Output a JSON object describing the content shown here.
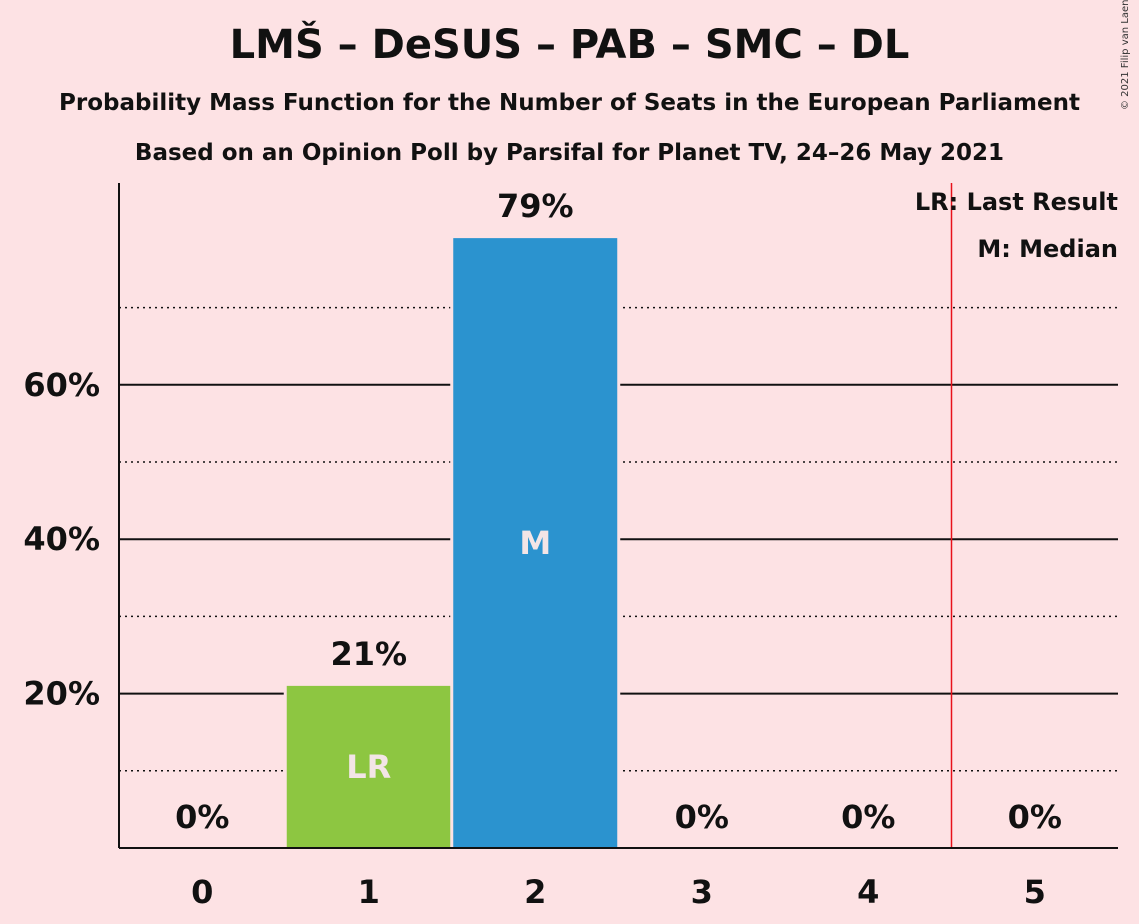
{
  "chart_data": {
    "type": "bar",
    "title": "LMŠ – DeSUS – PAB – SMC – DL",
    "subtitle": "Probability Mass Function for the Number of Seats in the European Parliament",
    "subtitle2": "Based on an Opinion Poll by Parsifal for Planet TV, 24–26 May 2021",
    "copyright": "© 2021 Filip van Laenen",
    "categories": [
      "0",
      "1",
      "2",
      "3",
      "4",
      "5"
    ],
    "values": [
      0,
      21,
      79,
      0,
      0,
      0
    ],
    "value_labels": [
      "0%",
      "21%",
      "79%",
      "0%",
      "0%",
      "0%"
    ],
    "bar_colors": [
      "#2b93cf",
      "#8dc641",
      "#2b93cf",
      "#2b93cf",
      "#2b93cf",
      "#2b93cf"
    ],
    "bar_markers": [
      {
        "category": "1",
        "text": "LR"
      },
      {
        "category": "2",
        "text": "M"
      }
    ],
    "ylim": [
      0,
      85
    ],
    "y_ticks": [
      {
        "value": 20,
        "label": "20%"
      },
      {
        "value": 40,
        "label": "40%"
      },
      {
        "value": 60,
        "label": "60%"
      }
    ],
    "minor_gridlines": [
      10,
      30,
      50,
      70
    ],
    "last_result_line": 4.5,
    "last_result_color": "#e8101a",
    "legend": [
      "LR: Last Result",
      "M: Median"
    ],
    "legend_position": "top-right",
    "grid": true
  }
}
